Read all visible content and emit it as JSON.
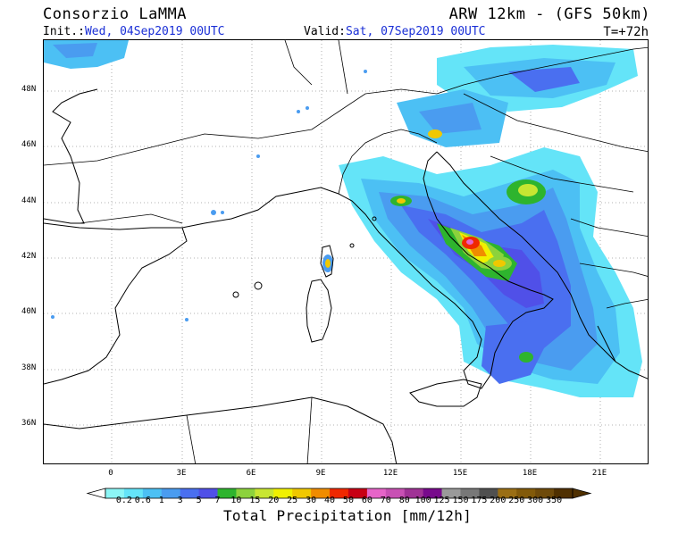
{
  "header": {
    "org": "Consorzio LaMMA",
    "model": "ARW 12km - (GFS 50km)",
    "init_label": "Init.:",
    "init_value": "Wed, 04Sep2019 00UTC",
    "valid_label": "Valid:",
    "valid_value": "Sat, 07Sep2019 00UTC",
    "step": "T=+72h"
  },
  "map": {
    "lat_labels": [
      "48N",
      "46N",
      "44N",
      "42N",
      "40N",
      "38N",
      "36N"
    ],
    "lon_labels": [
      "0",
      "3E",
      "6E",
      "9E",
      "12E",
      "15E",
      "18E",
      "21E"
    ],
    "features": [
      "coastlines",
      "country-borders",
      "lat-lon-grid",
      "precipitation-field"
    ]
  },
  "colorbar": {
    "title": "Total Precipitation [mm/12h]",
    "labels": [
      "0.2",
      "0.6",
      "1",
      "3",
      "5",
      "7",
      "10",
      "15",
      "20",
      "25",
      "30",
      "40",
      "50",
      "60",
      "70",
      "80",
      "100",
      "125",
      "150",
      "175",
      "200",
      "250",
      "300",
      "350"
    ],
    "colors": [
      "#8cf6f6",
      "#64e4f8",
      "#4cc0f4",
      "#4a9cf0",
      "#4a6ff0",
      "#5050e8",
      "#2eb42e",
      "#8cd23c",
      "#c8e632",
      "#f0f000",
      "#f0c800",
      "#f08c00",
      "#f02800",
      "#c80014",
      "#e664c8",
      "#c850b4",
      "#a03296",
      "#780a8c",
      "#9a9a9a",
      "#787878",
      "#505050",
      "#9a6e14",
      "#825a0a",
      "#6e4a0a",
      "#503000"
    ]
  }
}
